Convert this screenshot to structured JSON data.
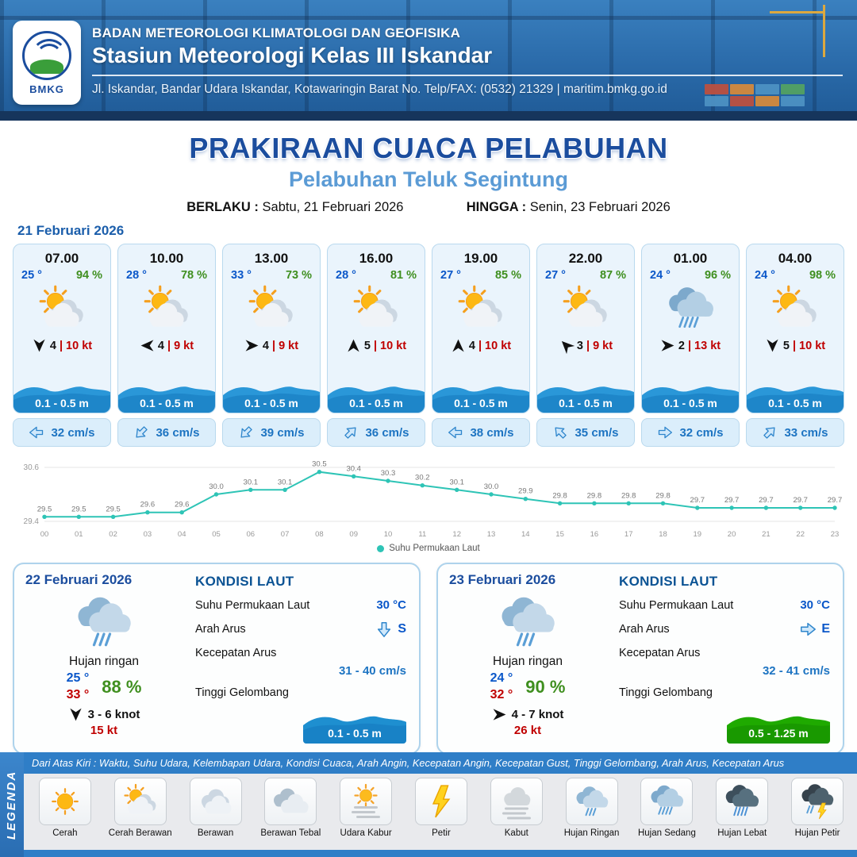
{
  "colors": {
    "header_blue": "#2a6aa9",
    "title_blue": "#1b4d9e",
    "subtitle_blue": "#5b9bd5",
    "temp_blue": "#0a57c9",
    "humidity_green": "#3f8f1f",
    "gust_red": "#c00000",
    "wave_blue": "#1e8fd0",
    "wave_green": "#1faa00",
    "line_teal": "#2ec4b6"
  },
  "header": {
    "logo": "BMKG",
    "org": "BADAN METEOROLOGI KLIMATOLOGI DAN GEOFISIKA",
    "station": "Stasiun Meteorologi Kelas III Iskandar",
    "address": "Jl. Iskandar, Bandar Udara Iskandar, Kotawaringin Barat No. Telp/FAX: (0532) 21329 | maritim.bmkg.go.id"
  },
  "title": {
    "main": "PRAKIRAAN CUACA PELABUHAN",
    "sub": "Pelabuhan Teluk Segintung",
    "berlaku_label": "BERLAKU :",
    "berlaku_value": "Sabtu, 21 Februari 2026",
    "hingga_label": "HINGGA :",
    "hingga_value": "Senin, 23 Februari 2026"
  },
  "day1": {
    "date": "21 Februari 2026",
    "cards": [
      {
        "time": "07.00",
        "temp": "25 °",
        "hum": "94 %",
        "icon": "cerah-berawan",
        "wind": "4",
        "gust": "10 kt",
        "wind_deg": 90,
        "wave": "0.1 - 0.5 m",
        "cur": "32 cm/s",
        "cur_deg": 180
      },
      {
        "time": "10.00",
        "temp": "28 °",
        "hum": "78 %",
        "icon": "cerah-berawan",
        "wind": "4",
        "gust": "9 kt",
        "wind_deg": 180,
        "wave": "0.1 - 0.5 m",
        "cur": "36 cm/s",
        "cur_deg": 135
      },
      {
        "time": "13.00",
        "temp": "33 °",
        "hum": "73 %",
        "icon": "cerah-berawan",
        "wind": "4",
        "gust": "9 kt",
        "wind_deg": 0,
        "wave": "0.1 - 0.5 m",
        "cur": "39 cm/s",
        "cur_deg": 135
      },
      {
        "time": "16.00",
        "temp": "28 °",
        "hum": "81 %",
        "icon": "cerah-berawan",
        "wind": "5",
        "gust": "10 kt",
        "wind_deg": -90,
        "wave": "0.1 - 0.5 m",
        "cur": "36 cm/s",
        "cur_deg": -45
      },
      {
        "time": "19.00",
        "temp": "27 °",
        "hum": "85 %",
        "icon": "cerah-berawan",
        "wind": "4",
        "gust": "10 kt",
        "wind_deg": -90,
        "wave": "0.1 - 0.5 m",
        "cur": "38 cm/s",
        "cur_deg": 180
      },
      {
        "time": "22.00",
        "temp": "27 °",
        "hum": "87 %",
        "icon": "cerah-berawan",
        "wind": "3",
        "gust": "9 kt",
        "wind_deg": -135,
        "wave": "0.1 - 0.5 m",
        "cur": "35 cm/s",
        "cur_deg": -135
      },
      {
        "time": "01.00",
        "temp": "24 °",
        "hum": "96 %",
        "icon": "hujan-sedang",
        "wind": "2",
        "gust": "13 kt",
        "wind_deg": 0,
        "wave": "0.1 - 0.5 m",
        "cur": "32 cm/s",
        "cur_deg": 0
      },
      {
        "time": "04.00",
        "temp": "24 °",
        "hum": "98 %",
        "icon": "cerah-berawan",
        "wind": "5",
        "gust": "10 kt",
        "wind_deg": 90,
        "wave": "0.1 - 0.5 m",
        "cur": "33 cm/s",
        "cur_deg": -45
      }
    ]
  },
  "chart_data": {
    "type": "line",
    "series_name": "Suhu Permukaan Laut",
    "x": [
      "00",
      "01",
      "02",
      "03",
      "04",
      "05",
      "06",
      "07",
      "08",
      "09",
      "10",
      "11",
      "12",
      "13",
      "14",
      "15",
      "16",
      "17",
      "18",
      "19",
      "20",
      "21",
      "22",
      "23"
    ],
    "values": [
      29.5,
      29.5,
      29.5,
      29.6,
      29.6,
      30.0,
      30.1,
      30.1,
      30.5,
      30.4,
      30.3,
      30.2,
      30.1,
      30.0,
      29.9,
      29.8,
      29.8,
      29.8,
      29.8,
      29.7,
      29.7,
      29.7,
      29.7,
      29.7
    ],
    "ylim": [
      29.4,
      30.6
    ],
    "line_color": "#2ec4b6",
    "legend_position": "bottom-center",
    "grid": true
  },
  "days": [
    {
      "date": "22 Februari 2026",
      "icon": "hujan-ringan",
      "cond": "Hujan ringan",
      "tmin": "25 °",
      "tmax": "33 °",
      "hum": "88 %",
      "wind": "3  - 6 knot",
      "wind_deg": 90,
      "gust": "15 kt",
      "sea": {
        "title": "KONDISI LAUT",
        "sst_label": "Suhu Permukaan Laut",
        "sst": "30 °C",
        "arah_label": "Arah Arus",
        "arah": "S",
        "arah_deg": 90,
        "kec_label": "Kecepatan Arus",
        "kec": "31 - 40 cm/s",
        "gel_label": "Tinggi Gelombang",
        "gel": "0.1 - 0.5 m",
        "gel_color": "#1e8fd0",
        "gel_color2": "#1478bd"
      }
    },
    {
      "date": "23 Februari 2026",
      "icon": "hujan-ringan",
      "cond": "Hujan ringan",
      "tmin": "24 °",
      "tmax": "32 °",
      "hum": "90 %",
      "wind": "4  - 7 knot",
      "wind_deg": 0,
      "gust": "26 kt",
      "sea": {
        "title": "KONDISI LAUT",
        "sst_label": "Suhu Permukaan Laut",
        "sst": "30 °C",
        "arah_label": "Arah Arus",
        "arah": "E",
        "arah_deg": 0,
        "kec_label": "Kecepatan Arus",
        "kec": "32 - 41 cm/s",
        "gel_label": "Tinggi Gelombang",
        "gel": "0.5 - 1.25 m",
        "gel_color": "#1faa00",
        "gel_color2": "#148a00"
      }
    }
  ],
  "legend": {
    "sidebar": "LEGENDA",
    "note": "Dari Atas Kiri : Waktu, Suhu Udara, Kelembapan Udara, Kondisi Cuaca, Arah Angin, Kecepatan Angin, Kecepatan Gust, Tinggi Gelombang, Arah Arus, Kecepatan Arus",
    "items": [
      {
        "label": "Cerah",
        "icon": "cerah"
      },
      {
        "label": "Cerah Berawan",
        "icon": "cerah-berawan"
      },
      {
        "label": "Berawan",
        "icon": "berawan"
      },
      {
        "label": "Berawan Tebal",
        "icon": "berawan-tebal"
      },
      {
        "label": "Udara Kabur",
        "icon": "udara-kabur"
      },
      {
        "label": "Petir",
        "icon": "petir"
      },
      {
        "label": "Kabut",
        "icon": "kabut"
      },
      {
        "label": "Hujan Ringan",
        "icon": "hujan-ringan"
      },
      {
        "label": "Hujan Sedang",
        "icon": "hujan-sedang"
      },
      {
        "label": "Hujan Lebat",
        "icon": "hujan-lebat"
      },
      {
        "label": "Hujan Petir",
        "icon": "hujan-petir"
      }
    ]
  }
}
